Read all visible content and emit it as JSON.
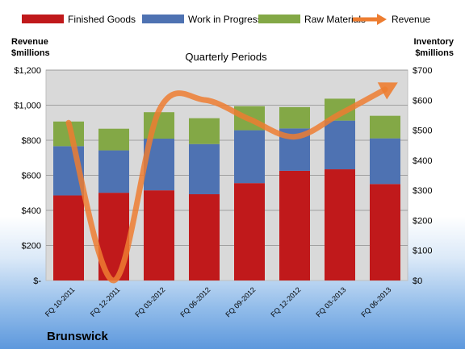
{
  "company": "Brunswick",
  "chart_data": {
    "type": "bar",
    "stacked": true,
    "title": "Quarterly Periods",
    "categories": [
      "FQ 10-2011",
      "FQ 12-2011",
      "FQ 03-2012",
      "FQ 06-2012",
      "FQ 09-2012",
      "FQ 12-2012",
      "FQ 03-2013",
      "FQ 06-2013"
    ],
    "series": [
      {
        "name": "Finished Goods",
        "color": "#c0191b",
        "axis": "right",
        "values": [
          283,
          292,
          300,
          287,
          324,
          365,
          370,
          321
        ]
      },
      {
        "name": "Work in Progress",
        "color": "#4e72b2",
        "axis": "right",
        "values": [
          164,
          141,
          172,
          167,
          176,
          141,
          162,
          152
        ]
      },
      {
        "name": "Raw Materials",
        "color": "#83a846",
        "axis": "right",
        "values": [
          82,
          72,
          88,
          86,
          80,
          71,
          73,
          75
        ]
      }
    ],
    "line_series": {
      "name": "Revenue",
      "color": "#ed7d31",
      "axis": "left",
      "values": [
        900,
        0,
        970,
        1030,
        920,
        820,
        950,
        1090
      ]
    },
    "left_axis": {
      "title_line1": "Revenue",
      "title_line2": "$millions",
      "ylim": [
        0,
        1200
      ],
      "ticks": [
        "$-",
        "$200",
        "$400",
        "$600",
        "$800",
        "$1,000",
        "$1,200"
      ]
    },
    "right_axis": {
      "title_line1": "Inventory",
      "title_line2": "$millions",
      "ylim": [
        0,
        700
      ],
      "ticks": [
        "$0",
        "$100",
        "$200",
        "$300",
        "$400",
        "$500",
        "$600",
        "$700"
      ]
    },
    "grid": true,
    "legend_position": "top"
  }
}
